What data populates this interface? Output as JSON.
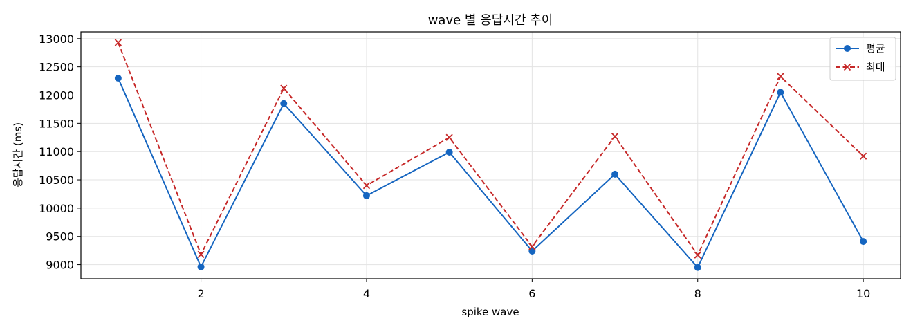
{
  "chart_data": {
    "type": "line",
    "title": "wave 별 응답시간 추이",
    "xlabel": "spike wave",
    "ylabel": "응답시간 (ms)",
    "x": [
      1,
      2,
      3,
      4,
      5,
      6,
      7,
      8,
      9,
      10
    ],
    "xlim": [
      0.55,
      10.45
    ],
    "ylim": [
      8750,
      13120
    ],
    "xticks": [
      2,
      4,
      6,
      8,
      10
    ],
    "yticks": [
      9000,
      9500,
      10000,
      10500,
      11000,
      11500,
      12000,
      12500,
      13000
    ],
    "grid": true,
    "legend_position": "top-right",
    "series": [
      {
        "name": "평균",
        "values": [
          12300,
          8960,
          11850,
          10220,
          10990,
          9240,
          10600,
          8950,
          12050,
          9410
        ],
        "color": "#1565c0",
        "linestyle": "solid",
        "marker": "circle"
      },
      {
        "name": "최대",
        "values": [
          12930,
          9180,
          12120,
          10400,
          11250,
          9320,
          11270,
          9170,
          12330,
          10920
        ],
        "color": "#c62828",
        "linestyle": "dashed",
        "marker": "x"
      }
    ]
  }
}
